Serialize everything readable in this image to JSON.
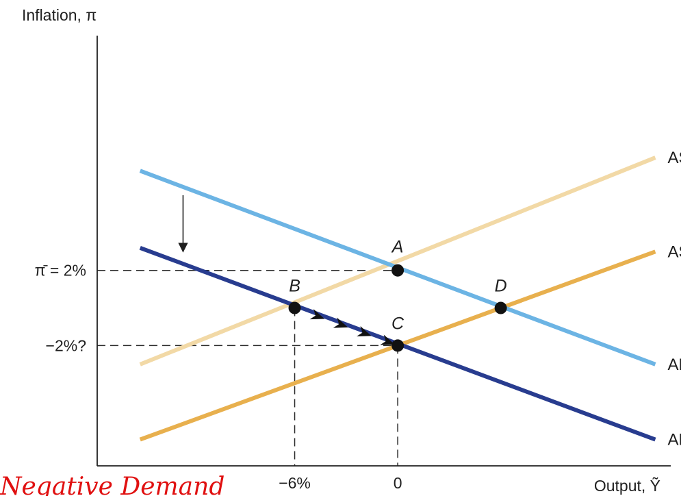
{
  "chart_data": {
    "type": "line",
    "title": "",
    "ylabel": "Inflation, π",
    "xlabel": "Output, Ỹ",
    "x_ticks": [
      {
        "x": -6,
        "label": "−6%"
      },
      {
        "x": 0,
        "label": "0"
      }
    ],
    "y_ticks": [
      {
        "y": 2,
        "label": "π̄ = 2%"
      },
      {
        "y": -2,
        "label": "−2%?"
      }
    ],
    "xlim": [
      -17.5,
      15.5
    ],
    "ylim": [
      -8.4,
      14.2
    ],
    "grid": false,
    "series": [
      {
        "name": "AS",
        "color": "#f2d9a6",
        "points": [
          [
            -15,
            -3
          ],
          [
            15,
            8
          ]
        ]
      },
      {
        "name": "AS′",
        "color": "#e8b04e",
        "points": [
          [
            -15,
            -7
          ],
          [
            15,
            3
          ]
        ]
      },
      {
        "name": "AD",
        "color": "#6cb4e4",
        "points": [
          [
            -15,
            7.3
          ],
          [
            15,
            -3
          ]
        ]
      },
      {
        "name": "AD′",
        "color": "#283c8f",
        "points": [
          [
            -15,
            3.2
          ],
          [
            15,
            -7
          ]
        ]
      }
    ],
    "points": [
      {
        "label": "A",
        "x": 0,
        "y": 2
      },
      {
        "label": "B",
        "x": -6,
        "y": 0
      },
      {
        "label": "C",
        "x": 0,
        "y": -2
      },
      {
        "label": "D",
        "x": 6,
        "y": 0
      }
    ],
    "guides": [
      {
        "from": [
          -17.5,
          2
        ],
        "to": [
          0,
          2
        ]
      },
      {
        "from": [
          -17.5,
          -2
        ],
        "to": [
          0,
          -2
        ]
      },
      {
        "from": [
          -6,
          0
        ],
        "to": [
          -6,
          -8.4
        ]
      },
      {
        "from": [
          0,
          -2
        ],
        "to": [
          0,
          -8.4
        ]
      }
    ],
    "shift_arrow": {
      "x": -12.5,
      "from_y": 6,
      "to_y": 3
    },
    "path_arrows": {
      "from": [
        -6,
        0
      ],
      "to": [
        0,
        -2
      ],
      "count": 4
    },
    "annotation": "Negative Demand"
  }
}
